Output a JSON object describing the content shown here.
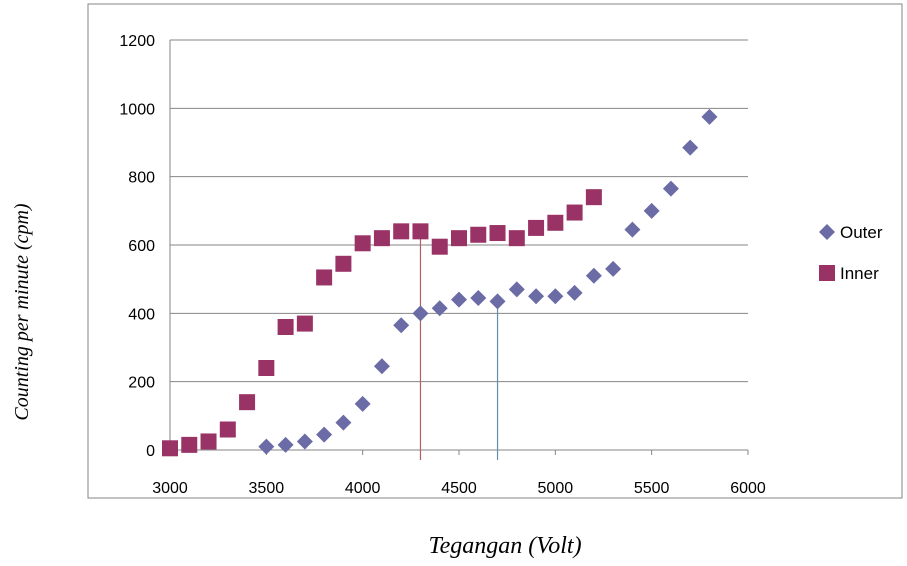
{
  "chart_data": {
    "type": "scatter",
    "xlabel": "Tegangan (Volt)",
    "ylabel": "Counting per minute (cpm)",
    "xlim": [
      3000,
      6000
    ],
    "ylim": [
      0,
      1200
    ],
    "x_ticks": [
      "3000",
      "3500",
      "4000",
      "4500",
      "5000",
      "5500",
      "6000"
    ],
    "y_ticks": [
      "0",
      "200",
      "400",
      "600",
      "800",
      "1000",
      "1200"
    ],
    "grid": "horizontal",
    "legend": "right",
    "series": [
      {
        "name": "Outer",
        "marker": "diamond",
        "color": "#6b6ba6",
        "x": [
          3500,
          3600,
          3700,
          3800,
          3900,
          4000,
          4100,
          4200,
          4300,
          4400,
          4500,
          4600,
          4700,
          4800,
          4900,
          5000,
          5100,
          5200,
          5300,
          5400,
          5500,
          5600,
          5700,
          5800
        ],
        "y": [
          10,
          15,
          25,
          45,
          80,
          135,
          245,
          365,
          400,
          415,
          440,
          445,
          435,
          470,
          450,
          450,
          460,
          510,
          530,
          645,
          700,
          765,
          885,
          975
        ]
      },
      {
        "name": "Inner",
        "marker": "square",
        "color": "#993366",
        "x": [
          3000,
          3100,
          3200,
          3300,
          3400,
          3500,
          3600,
          3700,
          3800,
          3900,
          4000,
          4100,
          4200,
          4300,
          4400,
          4500,
          4600,
          4700,
          4800,
          4900,
          5000,
          5100,
          5200
        ],
        "y": [
          5,
          15,
          25,
          60,
          140,
          240,
          360,
          370,
          505,
          545,
          605,
          620,
          640,
          640,
          595,
          620,
          630,
          635,
          620,
          650,
          665,
          695,
          740
        ]
      }
    ],
    "annotations": [
      {
        "type": "vertical-line",
        "x": 4300,
        "y": 640,
        "color": "#b06060"
      },
      {
        "type": "vertical-line",
        "x": 4700,
        "y": 435,
        "color": "#6090a8"
      }
    ]
  }
}
